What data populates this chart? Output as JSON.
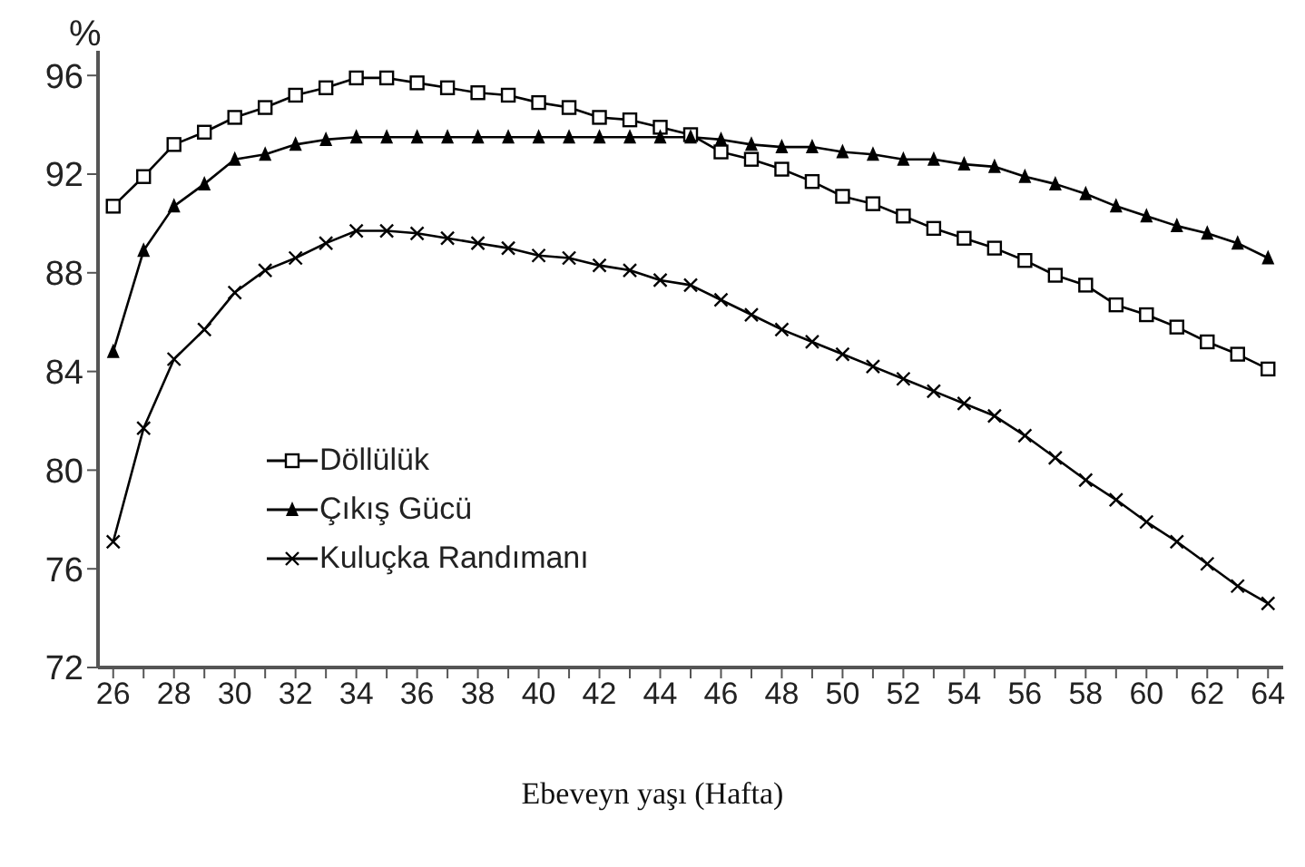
{
  "chart_data": {
    "type": "line",
    "xlabel": "Ebeveyn yaşı (Hafta)",
    "ylabel": "%",
    "x": [
      26,
      27,
      28,
      29,
      30,
      31,
      32,
      33,
      34,
      35,
      36,
      37,
      38,
      39,
      40,
      41,
      42,
      43,
      44,
      45,
      46,
      47,
      48,
      49,
      50,
      51,
      52,
      53,
      54,
      55,
      56,
      57,
      58,
      59,
      60,
      61,
      62,
      63,
      64
    ],
    "series": [
      {
        "name": "Döllülük",
        "color": "#000000",
        "marker": "square",
        "values": [
          90.7,
          91.9,
          93.2,
          93.7,
          94.3,
          94.7,
          95.2,
          95.5,
          95.9,
          95.9,
          95.7,
          95.5,
          95.3,
          95.2,
          94.9,
          94.7,
          94.3,
          94.2,
          93.9,
          93.6,
          92.9,
          92.6,
          92.2,
          91.7,
          91.1,
          90.8,
          90.3,
          89.8,
          89.4,
          89.0,
          88.5,
          87.9,
          87.5,
          86.7,
          86.3,
          85.8,
          85.2,
          84.7,
          84.1
        ]
      },
      {
        "name": "Çıkış Gücü",
        "color": "#000000",
        "marker": "triangle",
        "values": [
          84.8,
          88.9,
          90.7,
          91.6,
          92.6,
          92.8,
          93.2,
          93.4,
          93.5,
          93.5,
          93.5,
          93.5,
          93.5,
          93.5,
          93.5,
          93.5,
          93.5,
          93.5,
          93.5,
          93.5,
          93.4,
          93.2,
          93.1,
          93.1,
          92.9,
          92.8,
          92.6,
          92.6,
          92.4,
          92.3,
          91.9,
          91.6,
          91.2,
          90.7,
          90.3,
          89.9,
          89.6,
          89.2,
          88.6
        ]
      },
      {
        "name": "Kuluçka Randımanı",
        "color": "#000000",
        "marker": "cross",
        "values": [
          77.1,
          81.7,
          84.5,
          85.7,
          87.2,
          88.1,
          88.6,
          89.2,
          89.7,
          89.7,
          89.6,
          89.4,
          89.2,
          89.0,
          88.7,
          88.6,
          88.3,
          88.1,
          87.7,
          87.5,
          86.9,
          86.3,
          85.7,
          85.2,
          84.7,
          84.2,
          83.7,
          83.2,
          82.7,
          82.2,
          81.4,
          80.5,
          79.6,
          78.8,
          77.9,
          77.1,
          76.2,
          75.3,
          74.6
        ]
      }
    ],
    "xlim": [
      25.5,
      64.5
    ],
    "xticks": [
      26,
      {
        "value": 27,
        "label": null
      },
      28,
      {
        "value": 29,
        "label": null
      },
      30,
      {
        "value": 31,
        "label": null
      },
      32,
      {
        "value": 33,
        "label": null
      },
      34,
      {
        "value": 35,
        "label": null
      },
      36,
      {
        "value": 37,
        "label": null
      },
      38,
      {
        "value": 39,
        "label": null
      },
      40,
      {
        "value": 41,
        "label": null
      },
      42,
      {
        "value": 43,
        "label": null
      },
      44,
      {
        "value": 45,
        "label": null
      },
      46,
      {
        "value": 47,
        "label": null
      },
      48,
      {
        "value": 49,
        "label": null
      },
      50,
      {
        "value": 51,
        "label": null
      },
      52,
      {
        "value": 53,
        "label": null
      },
      54,
      {
        "value": 55,
        "label": null
      },
      56,
      {
        "value": 57,
        "label": null
      },
      58,
      {
        "value": 59,
        "label": null
      },
      60,
      {
        "value": 61,
        "label": null
      },
      62,
      {
        "value": 63,
        "label": null
      },
      64
    ],
    "ylim": [
      72,
      97
    ],
    "yticks": [
      72,
      76,
      80,
      84,
      88,
      92,
      96
    ],
    "grid": false,
    "legend": "left",
    "line_style": "solid"
  }
}
